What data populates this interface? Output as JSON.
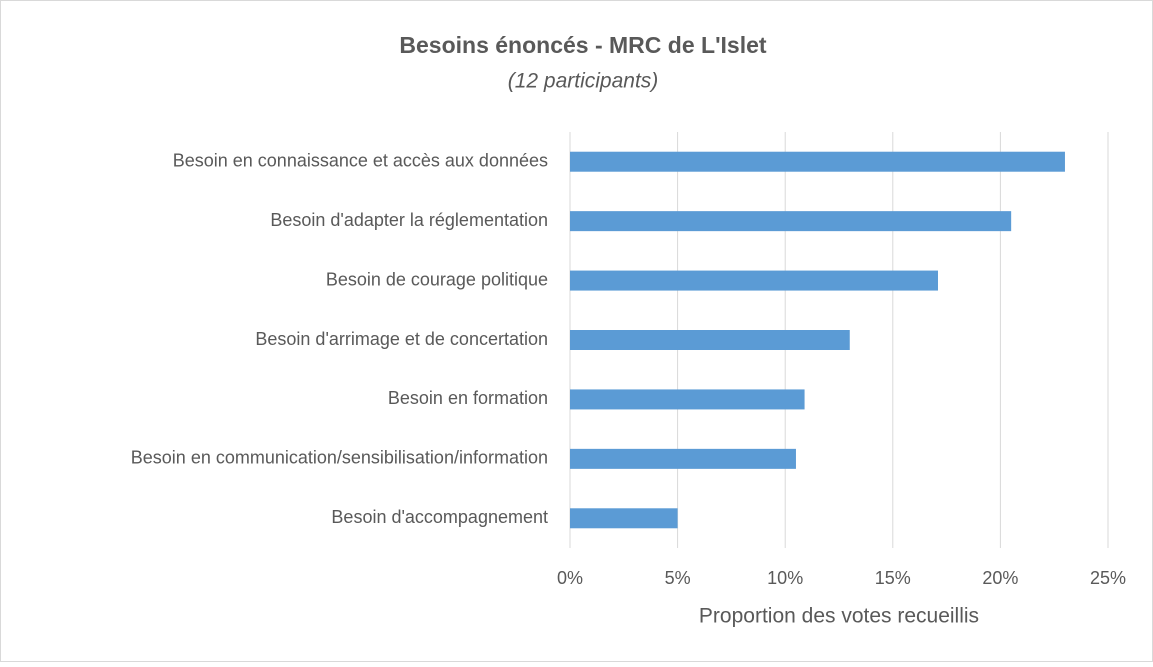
{
  "chart_data": {
    "type": "bar",
    "title": "Besoins énoncés - MRC de L'Islet",
    "subtitle": "(12 participants)",
    "x_label": "Proportion des votes recueillis",
    "categories": [
      "Besoin en connaissance et accès aux données",
      "Besoin d'adapter la réglementation",
      "Besoin de courage politique",
      "Besoin d'arrimage et de concertation",
      "Besoin en formation",
      "Besoin en communication/sensibilisation/information",
      "Besoin d'accompagnement"
    ],
    "values": [
      23.0,
      20.5,
      17.1,
      13.0,
      10.9,
      10.5,
      5.0
    ],
    "color": "#5b9bd5",
    "xlim": [
      0,
      25
    ],
    "xticks": [
      {
        "value": 0,
        "label": "0%"
      },
      {
        "value": 5,
        "label": "5%"
      },
      {
        "value": 10,
        "label": "10%"
      },
      {
        "value": 15,
        "label": "15%"
      },
      {
        "value": 20,
        "label": "20%"
      },
      {
        "value": 25,
        "label": "25%"
      }
    ],
    "grid": true
  }
}
